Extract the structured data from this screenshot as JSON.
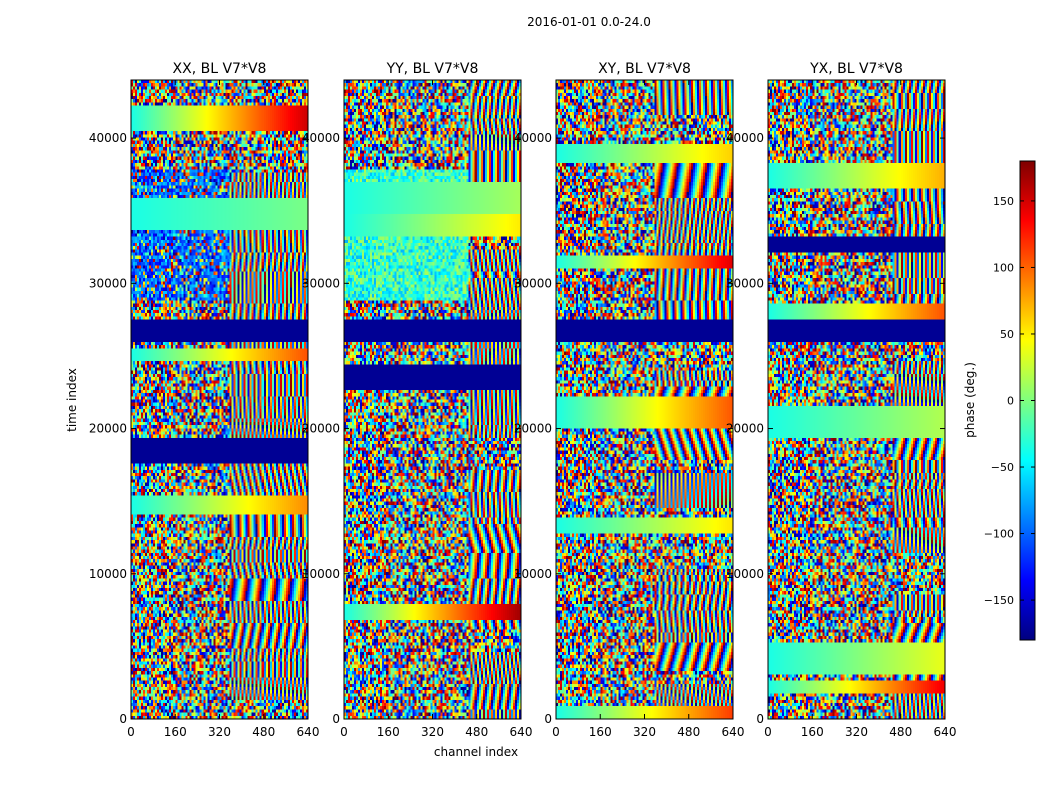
{
  "chart_data": {
    "type": "heatmap",
    "suptitle": "2016-01-01 0.0-24.0",
    "xlabel": "channel index",
    "ylabel": "time index",
    "xlim": [
      0,
      640
    ],
    "ylim": [
      0,
      44000
    ],
    "xticks": [
      0,
      160,
      320,
      480,
      640
    ],
    "yticks": [
      0,
      10000,
      20000,
      30000,
      40000
    ],
    "colormap": "jet",
    "colorbar": {
      "label": "phase (deg.)",
      "range": [
        -180,
        180
      ],
      "ticks": [
        -150,
        -100,
        -50,
        0,
        50,
        100,
        150
      ],
      "tick_labels": [
        "−150",
        "−100",
        "−50",
        "0",
        "50",
        "100",
        "150"
      ]
    },
    "panels": [
      {
        "title": "XX, BL V7*V8",
        "polarization": "XX"
      },
      {
        "title": "YY, BL V7*V8",
        "polarization": "YY"
      },
      {
        "title": "XY, BL V7*V8",
        "polarization": "XY"
      },
      {
        "title": "YX, BL V7*V8",
        "polarization": "YX"
      }
    ],
    "flagged_time_ranges": [
      [
        26000,
        27500
      ]
    ]
  },
  "colors": {
    "jet": [
      "#00007f",
      "#0000ff",
      "#007fff",
      "#00ffff",
      "#7fff7f",
      "#ffff00",
      "#ff7f00",
      "#ff0000",
      "#7f0000"
    ]
  }
}
